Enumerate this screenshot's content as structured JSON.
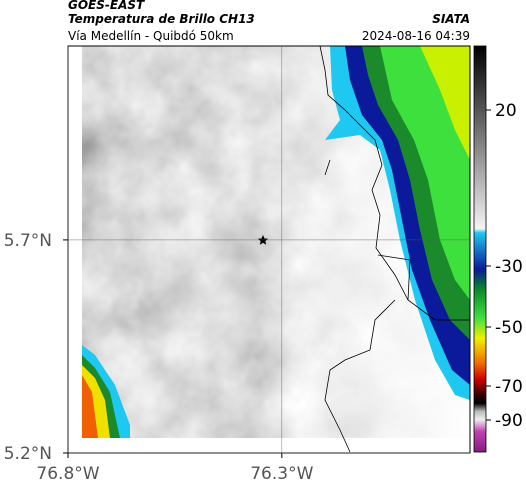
{
  "header": {
    "source": "GOES-EAST",
    "product": "Temperatura de Brillo CH13",
    "org": "SIATA",
    "route": "Vía Medellín - Quibdó 50km",
    "timestamp": "2024-08-16 04:39"
  },
  "map": {
    "lonlim": [
      -76.8,
      -75.86
    ],
    "latlim": [
      5.2,
      6.155
    ],
    "xticks": [
      {
        "value": -76.8,
        "label": "76.8°W"
      },
      {
        "value": -76.3,
        "label": "76.3°W"
      }
    ],
    "yticks": [
      {
        "value": 5.7,
        "label": "5.7°N"
      },
      {
        "value": 5.2,
        "label": "5.2°N"
      }
    ],
    "grid": true
  },
  "colorbar": {
    "ticks": [
      20,
      -30,
      -50,
      -70,
      -90
    ]
  }
}
